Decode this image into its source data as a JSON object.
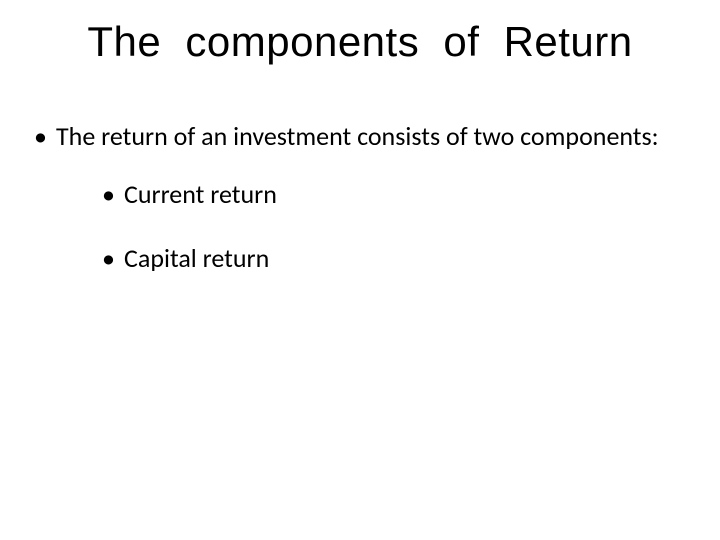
{
  "slide": {
    "title": "The  components  of  Return",
    "bullets": [
      {
        "text": "The return of an investment consists of two components:",
        "children": [
          {
            "text": "Current return"
          },
          {
            "text": "Capital return"
          }
        ]
      }
    ]
  },
  "style": {
    "background_color": "#ffffff",
    "text_color": "#000000",
    "title_fontsize": 42,
    "body_fontsize": 26,
    "title_font": "Arial",
    "body_font": "Calibri"
  }
}
